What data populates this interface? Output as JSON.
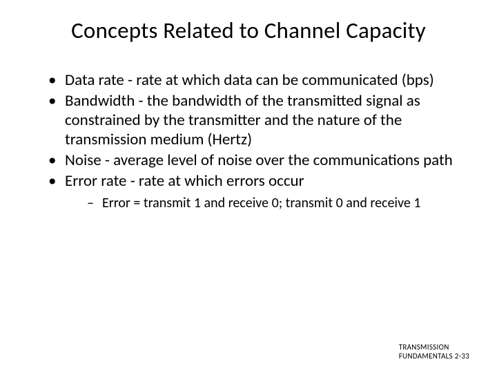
{
  "title": "Concepts Related to Channel Capacity",
  "bullets": [
    {
      "text": "Data rate - rate at which data can be communicated (bps)"
    },
    {
      "text": "Bandwidth - the bandwidth of the transmitted signal as constrained by the transmitter and the nature of the transmission medium (Hertz)"
    },
    {
      "text": "Noise - average level of noise over the communications path"
    },
    {
      "text": "Error rate - rate at which errors occur",
      "sub": [
        {
          "text": "Error = transmit 1 and receive 0; transmit 0 and receive 1"
        }
      ]
    }
  ],
  "footer": {
    "line1": "TRANSMISSION",
    "line2": "FUNDAMENTALS 2-33"
  }
}
